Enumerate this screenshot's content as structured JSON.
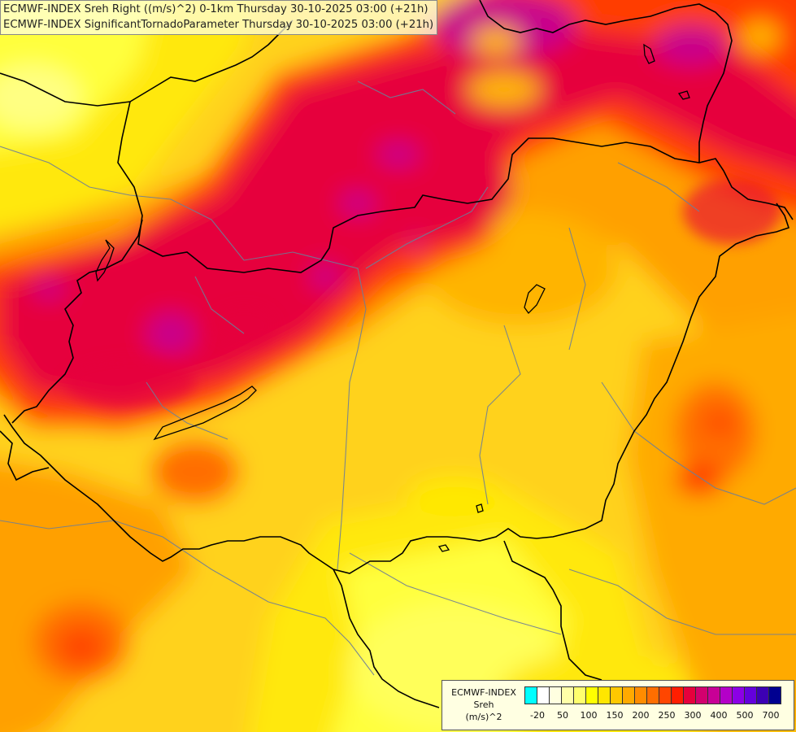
{
  "title": {
    "line1": "ECMWF-INDEX Sreh Right ((m/s)^2) 0-1km Thursday 30-10-2025 03:00 (+21h)",
    "line2": "ECMWF-INDEX SignificantTornadoParameter Thursday 30-10-2025 03:00 (+21h)"
  },
  "legend": {
    "name": "ECMWF-INDEX",
    "variable": "Sreh",
    "unit": "(m/s)^2",
    "colors": [
      "#00ffff",
      "#ffffff",
      "#ffffe0",
      "#ffffa8",
      "#ffff6e",
      "#ffff00",
      "#ffe600",
      "#ffc800",
      "#ffaa00",
      "#ff8c00",
      "#ff6e00",
      "#ff4600",
      "#ff1e00",
      "#e6003c",
      "#d2006e",
      "#c80096",
      "#b400c8",
      "#8c00e6",
      "#6400dc",
      "#3c00b4",
      "#000090"
    ],
    "ticks": [
      "-20",
      "50",
      "100",
      "150",
      "200",
      "250",
      "300",
      "400",
      "500",
      "700"
    ]
  },
  "colors": {
    "border": "#000000",
    "river": "#6e7e96",
    "background": "#ffd21e"
  }
}
